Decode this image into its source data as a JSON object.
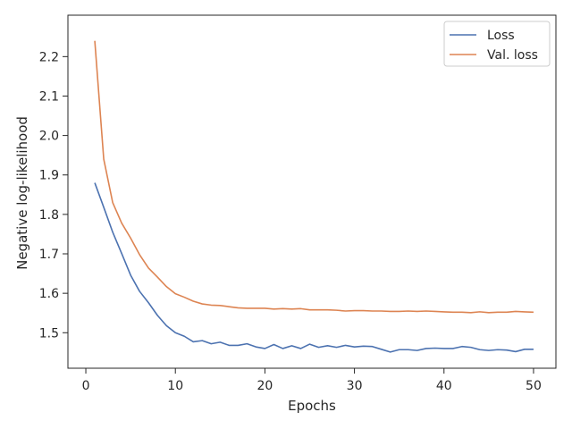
{
  "chart_data": {
    "type": "line",
    "title": "",
    "xlabel": "Epochs",
    "ylabel": "Negative log-likelihood",
    "xlim": [
      -2,
      52.5
    ],
    "ylim": [
      1.41,
      2.305
    ],
    "xticks": [
      0,
      10,
      20,
      30,
      40,
      50
    ],
    "yticks": [
      1.5,
      1.6,
      1.7,
      1.8,
      1.9,
      2.0,
      2.1,
      2.2
    ],
    "grid": false,
    "legend_position": "top-right",
    "x": [
      1,
      2,
      3,
      4,
      5,
      6,
      7,
      8,
      9,
      10,
      11,
      12,
      13,
      14,
      15,
      16,
      17,
      18,
      19,
      20,
      21,
      22,
      23,
      24,
      25,
      26,
      27,
      28,
      29,
      30,
      31,
      32,
      33,
      34,
      35,
      36,
      37,
      38,
      39,
      40,
      41,
      42,
      43,
      44,
      45,
      46,
      47,
      48,
      49,
      50
    ],
    "series": [
      {
        "name": "Loss",
        "color": "#4c72b0",
        "values": [
          1.88,
          1.818,
          1.755,
          1.701,
          1.646,
          1.605,
          1.576,
          1.544,
          1.518,
          1.5,
          1.491,
          1.477,
          1.48,
          1.472,
          1.476,
          1.468,
          1.468,
          1.472,
          1.464,
          1.46,
          1.47,
          1.46,
          1.467,
          1.46,
          1.471,
          1.463,
          1.467,
          1.463,
          1.468,
          1.464,
          1.466,
          1.465,
          1.458,
          1.451,
          1.457,
          1.457,
          1.455,
          1.46,
          1.461,
          1.46,
          1.46,
          1.465,
          1.463,
          1.457,
          1.455,
          1.457,
          1.456,
          1.452,
          1.458,
          1.458
        ]
      },
      {
        "name": "Val. loss",
        "color": "#dd8452",
        "values": [
          2.24,
          1.94,
          1.83,
          1.778,
          1.74,
          1.698,
          1.664,
          1.641,
          1.617,
          1.599,
          1.59,
          1.58,
          1.573,
          1.57,
          1.569,
          1.566,
          1.563,
          1.562,
          1.562,
          1.562,
          1.56,
          1.561,
          1.56,
          1.561,
          1.558,
          1.558,
          1.558,
          1.557,
          1.555,
          1.556,
          1.556,
          1.555,
          1.555,
          1.554,
          1.554,
          1.555,
          1.554,
          1.555,
          1.554,
          1.553,
          1.552,
          1.552,
          1.551,
          1.553,
          1.551,
          1.552,
          1.552,
          1.554,
          1.553,
          1.552
        ]
      }
    ]
  }
}
